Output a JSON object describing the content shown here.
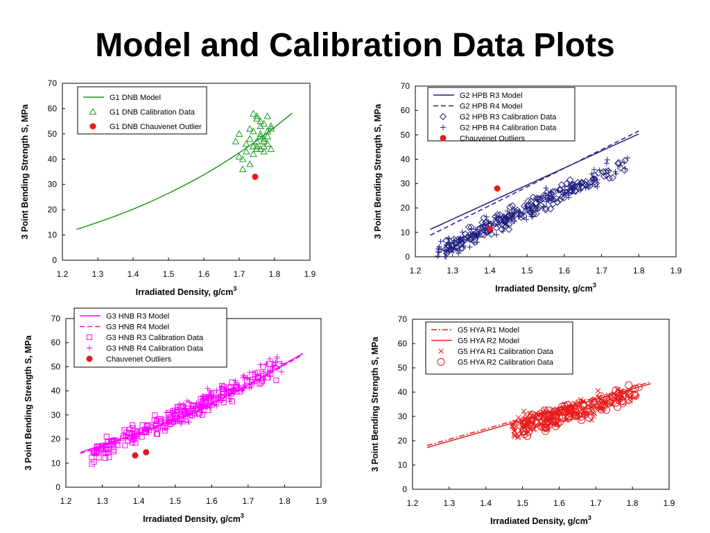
{
  "title": "Model and Calibration Data Plots",
  "chart_data": [
    {
      "type": "scatter",
      "xlabel": "Irradiated Density, g/cm",
      "xlabel_sup": "3",
      "ylabel": "3 Point Bending Strength S, MPa",
      "xlim": [
        1.2,
        1.9
      ],
      "ylim": [
        0,
        70
      ],
      "xticks": [
        "1.2",
        "1.3",
        "1.4",
        "1.5",
        "1.6",
        "1.7",
        "1.8",
        "1.9"
      ],
      "yticks": [
        "0",
        "10",
        "20",
        "30",
        "40",
        "50",
        "60",
        "70"
      ],
      "legend": "top-left",
      "legend_entries": [
        "G1 DNB Model",
        "G1 DNB Calibration Data",
        "G1 DNB Chauvenet Outlier"
      ],
      "colors": {
        "model": "#1a9a1a",
        "outlier": "#e8191a"
      },
      "model": {
        "name": "G1 DNB Model",
        "x": [
          1.24,
          1.3,
          1.35,
          1.4,
          1.45,
          1.5,
          1.55,
          1.6,
          1.65,
          1.7,
          1.75,
          1.8,
          1.85
        ],
        "y": [
          12.2,
          15,
          17.5,
          20.2,
          23.2,
          26.5,
          30,
          33.8,
          38,
          42.5,
          47.3,
          52.6,
          58.2
        ]
      },
      "calibration": {
        "name": "G1 DNB Calibration Data",
        "marker": "triangle",
        "x": [
          1.69,
          1.7,
          1.71,
          1.72,
          1.73,
          1.73,
          1.74,
          1.74,
          1.75,
          1.75,
          1.75,
          1.76,
          1.76,
          1.76,
          1.77,
          1.77,
          1.77,
          1.78,
          1.78,
          1.78,
          1.79,
          1.79,
          1.71,
          1.73,
          1.7,
          1.72,
          1.74,
          1.76,
          1.78,
          1.75,
          1.77,
          1.74,
          1.76,
          1.77,
          1.79,
          1.75
        ],
        "y": [
          47,
          50,
          36,
          43,
          48,
          52,
          45,
          51,
          47,
          56,
          57,
          44,
          49,
          53,
          45,
          48,
          54,
          46,
          51,
          57,
          44,
          53,
          40,
          38,
          41,
          46,
          42,
          50,
          49,
          45,
          47,
          58,
          55,
          43,
          52,
          44
        ]
      },
      "outliers": {
        "name": "G1 DNB Chauvenet Outlier",
        "x": [
          1.745
        ],
        "y": [
          33
        ]
      }
    },
    {
      "type": "scatter",
      "xlabel": "Irradiated Density, g/cm",
      "xlabel_sup": "3",
      "ylabel": "3 Point Bending Strength S, MPa",
      "xlim": [
        1.2,
        1.9
      ],
      "ylim": [
        0,
        70
      ],
      "xticks": [
        "1.2",
        "1.3",
        "1.4",
        "1.5",
        "1.6",
        "1.7",
        "1.8",
        "1.9"
      ],
      "yticks": [
        "0",
        "10",
        "20",
        "30",
        "40",
        "50",
        "60",
        "70"
      ],
      "legend": "top-left",
      "legend_entries": [
        "G2 HPB R3 Model",
        "G2 HPB R4 Model",
        "G2 HPB R3 Calibration Data",
        "G2 HPB R4 Calibration Data",
        "Chauvenet Outliers"
      ],
      "colors": {
        "model": "#1f1f80",
        "outlier": "#e8191a"
      },
      "model": {
        "name": "G2 HPB R3 Model",
        "x": [
          1.24,
          1.8
        ],
        "y": [
          11.2,
          50.4
        ]
      },
      "model2": {
        "name": "G2 HPB R4 Model",
        "x": [
          1.24,
          1.8
        ],
        "y": [
          8.8,
          51.6
        ]
      },
      "cal_trend": {
        "slope": 72,
        "intercept": -88.5,
        "xmin": 1.28,
        "xmax": 1.78,
        "spread": 6,
        "n": 190,
        "seed": 22
      },
      "cal_trend2": {
        "slope": 72,
        "intercept": -88.5,
        "xmin": 1.26,
        "xmax": 1.78,
        "spread": 6,
        "n": 150,
        "seed": 23
      },
      "markers": [
        "diamond",
        "plus"
      ],
      "outliers": {
        "name": "Chauvenet Outliers",
        "x": [
          1.42,
          1.4
        ],
        "y": [
          28,
          11.5
        ]
      }
    },
    {
      "type": "scatter",
      "xlabel": "Irradiated Density, g/cm",
      "xlabel_sup": "3",
      "ylabel": "3 Point Bending Strength S, MPa",
      "xlim": [
        1.2,
        1.9
      ],
      "ylim": [
        0,
        70
      ],
      "xticks": [
        "1.2",
        "1.3",
        "1.4",
        "1.5",
        "1.6",
        "1.7",
        "1.8",
        "1.9"
      ],
      "yticks": [
        "0",
        "10",
        "20",
        "30",
        "40",
        "50",
        "60",
        "70"
      ],
      "legend": "top-left",
      "legend_entries": [
        "G3 HNB R3 Model",
        "G3 HNB R4 Model",
        "G3 HNB R3 Calibration Data",
        "G3 HNB R4 Calibration Data",
        "Chauvenet Outliers"
      ],
      "colors": {
        "model": "#ff00ff",
        "outlier": "#e8191a"
      },
      "model": {
        "name": "G3 HNB R3 Model",
        "x": [
          1.24,
          1.4,
          1.55,
          1.7,
          1.85
        ],
        "y": [
          14.5,
          22.5,
          31,
          42.5,
          55.5
        ]
      },
      "model2": {
        "name": "G3 HNB R4 Model",
        "x": [
          1.24,
          1.4,
          1.55,
          1.7,
          1.85
        ],
        "y": [
          14,
          22,
          30.5,
          42,
          55
        ]
      },
      "cal_trend": {
        "slope": 72,
        "intercept": -78.5,
        "xmin": 1.27,
        "xmax": 1.79,
        "spread": 6,
        "n": 200,
        "seed": 31
      },
      "cal_trend2": {
        "slope": 72,
        "intercept": -78.5,
        "xmin": 1.47,
        "xmax": 1.81,
        "spread": 7,
        "n": 150,
        "seed": 32
      },
      "markers": [
        "square",
        "plus"
      ],
      "outliers": {
        "name": "Chauvenet Outliers",
        "x": [
          1.39,
          1.42
        ],
        "y": [
          13.2,
          14.5
        ]
      }
    },
    {
      "type": "scatter",
      "xlabel": "Irradiated Density, g/cm",
      "xlabel_sup": "3",
      "ylabel": "3 Point Bending Strength S, MPa",
      "xlim": [
        1.2,
        1.9
      ],
      "ylim": [
        0,
        70
      ],
      "xticks": [
        "1.2",
        "1.3",
        "1.4",
        "1.5",
        "1.6",
        "1.7",
        "1.8",
        "1.9"
      ],
      "yticks": [
        "0",
        "10",
        "20",
        "30",
        "40",
        "50",
        "60",
        "70"
      ],
      "legend": "top-left",
      "legend_entries": [
        "G5 HYA R1 Model",
        "G5 HYA R2 Model",
        "G5 HYA R1 Calibration Data",
        "G5 HYA R2 Calibration Data"
      ],
      "colors": {
        "model": "#e8191a"
      },
      "model": {
        "name": "G5 HYA R1 Model",
        "x": [
          1.24,
          1.85
        ],
        "y": [
          17.2,
          43.5
        ]
      },
      "model2": {
        "name": "G5 HYA R2 Model",
        "x": [
          1.24,
          1.85
        ],
        "y": [
          18,
          44.2
        ]
      },
      "cal_trend": {
        "slope": 45,
        "intercept": -41.5,
        "xmin": 1.47,
        "xmax": 1.82,
        "spread": 6,
        "n": 170,
        "seed": 51
      },
      "cal_trend2": {
        "slope": 45,
        "intercept": -41.5,
        "xmin": 1.5,
        "xmax": 1.82,
        "spread": 6,
        "n": 130,
        "seed": 52
      },
      "markers": [
        "x",
        "circle"
      ]
    }
  ]
}
